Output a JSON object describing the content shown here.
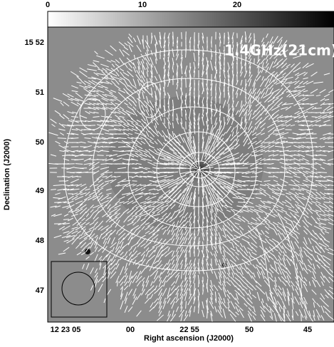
{
  "colorbar": {
    "ticks": [
      "0",
      "10",
      "20"
    ]
  },
  "annotation": "1.4GHz(21cm)",
  "y_axis": {
    "label": "Declination (J2000)",
    "ticks": [
      "15 52",
      "51",
      "50",
      "49",
      "48",
      "47"
    ]
  },
  "x_axis": {
    "label": "Right ascension (J2000)",
    "ticks": [
      "12 23 05",
      "00",
      "22 55",
      "50",
      "45"
    ]
  }
}
